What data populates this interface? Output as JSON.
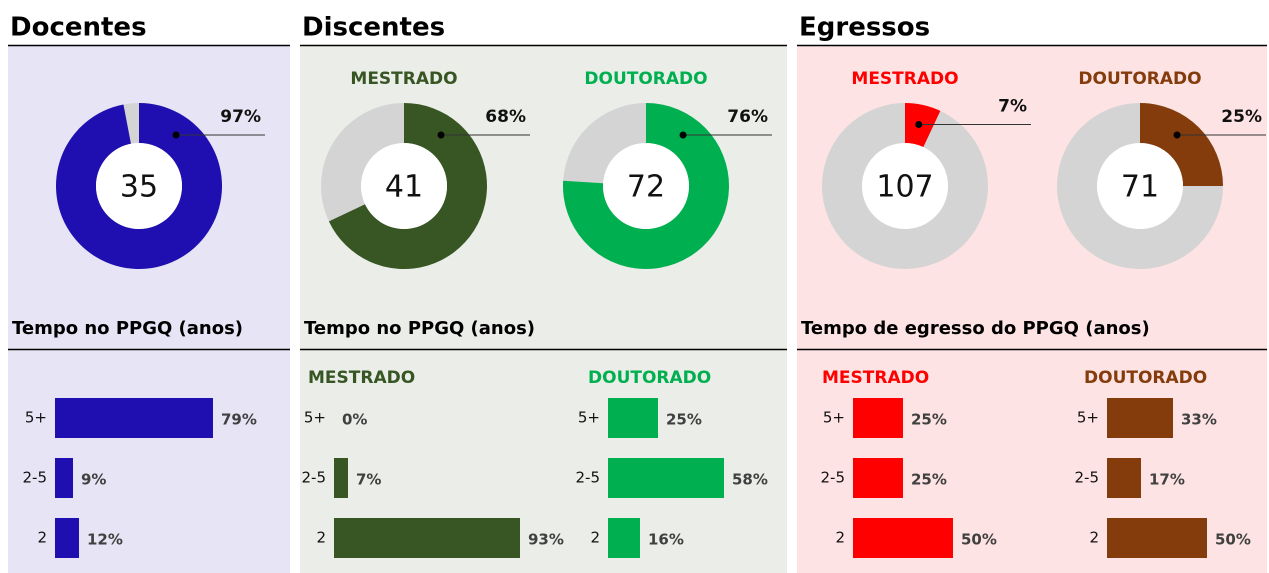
{
  "sections": [
    {
      "title": "Docentes",
      "subtitle": "Tempo no PPGQ (anos)",
      "chart_data": [
        {
          "type": "donut",
          "total": 35,
          "value": 97,
          "value_label": "97%",
          "color": "#1f0fb0"
        },
        {
          "type": "bar",
          "categories": [
            "5+",
            "2-5",
            "2"
          ],
          "values": [
            79,
            9,
            12
          ],
          "value_labels": [
            "79%",
            "9%",
            "12%"
          ],
          "color": "#1f0fb0"
        }
      ]
    },
    {
      "title": "Discentes",
      "subtitle": "Tempo no PPGQ (anos)",
      "chart_data": [
        {
          "type": "donut",
          "title": "MESTRADO",
          "total": 41,
          "value": 68,
          "value_label": "68%",
          "color": "#375623"
        },
        {
          "type": "donut",
          "title": "DOUTORADO",
          "total": 72,
          "value": 76,
          "value_label": "76%",
          "color": "#00b050"
        },
        {
          "type": "bar",
          "title": "MESTRADO",
          "categories": [
            "5+",
            "2-5",
            "2"
          ],
          "values": [
            0,
            7,
            93
          ],
          "value_labels": [
            "0%",
            "7%",
            "93%"
          ],
          "color": "#375623"
        },
        {
          "type": "bar",
          "title": "DOUTORADO",
          "categories": [
            "5+",
            "2-5",
            "2"
          ],
          "values": [
            25,
            58,
            16
          ],
          "value_labels": [
            "25%",
            "58%",
            "16%"
          ],
          "color": "#00b050"
        }
      ]
    },
    {
      "title": "Egressos",
      "subtitle": "Tempo de egresso do PPGQ (anos)",
      "chart_data": [
        {
          "type": "donut",
          "title": "MESTRADO",
          "total": 107,
          "value": 7,
          "value_label": "7%",
          "color": "#ff0000"
        },
        {
          "type": "donut",
          "title": "DOUTORADO",
          "total": 71,
          "value": 25,
          "value_label": "25%",
          "color": "#843c0c"
        },
        {
          "type": "bar",
          "title": "MESTRADO",
          "categories": [
            "5+",
            "2-5",
            "2"
          ],
          "values": [
            25,
            25,
            50
          ],
          "value_labels": [
            "25%",
            "25%",
            "50%"
          ],
          "color": "#ff0000"
        },
        {
          "type": "bar",
          "title": "DOUTORADO",
          "categories": [
            "5+",
            "2-5",
            "2"
          ],
          "values": [
            33,
            17,
            50
          ],
          "value_labels": [
            "33%",
            "17%",
            "50%"
          ],
          "color": "#843c0c"
        }
      ]
    }
  ]
}
